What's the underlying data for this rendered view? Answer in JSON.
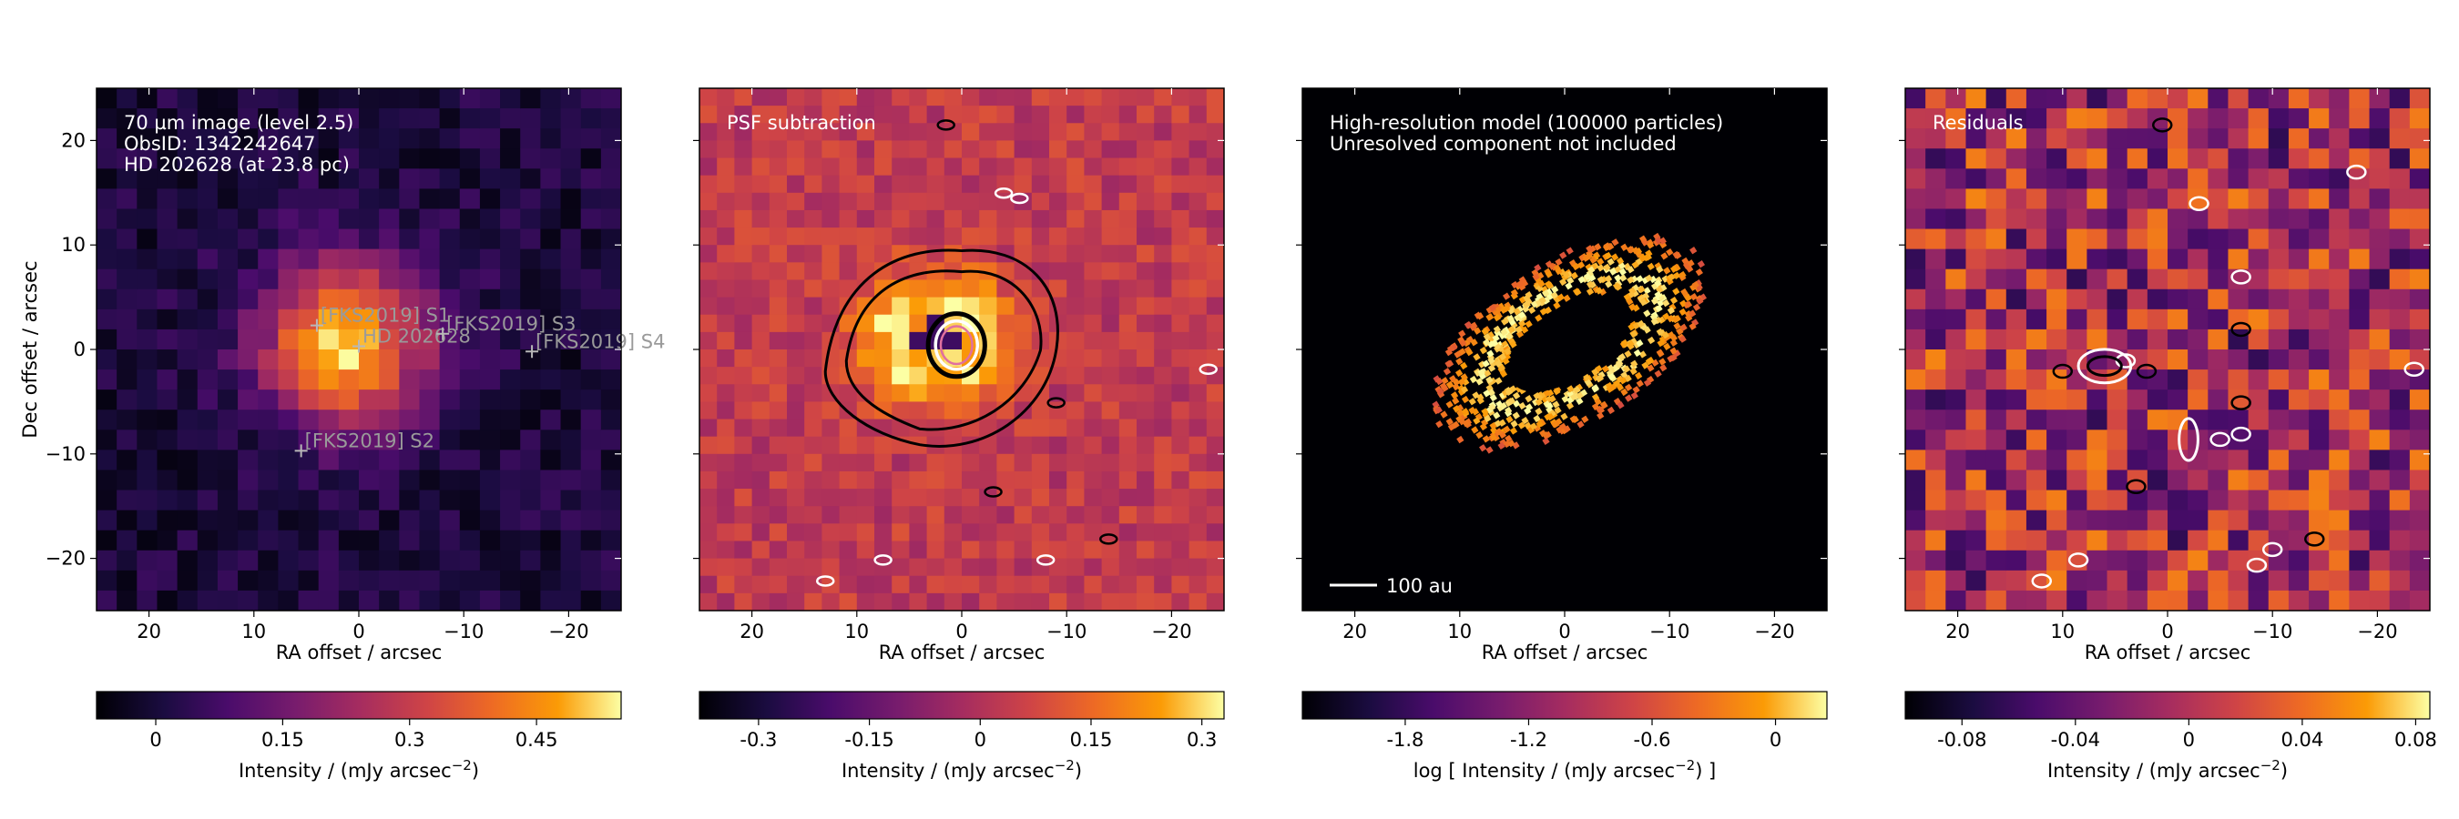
{
  "chart_data": [
    {
      "type": "heatmap",
      "title": "",
      "annotations": [
        "70 µm image (level 2.5)",
        "ObsID: 1342242647",
        "HD 202628 (at 23.8 pc)"
      ],
      "xlabel": "RA offset / arcsec",
      "ylabel": "Dec offset / arcsec",
      "xlim": [
        25,
        -25
      ],
      "ylim": [
        -25,
        25
      ],
      "xticks": [
        20,
        10,
        0,
        -10,
        -20
      ],
      "xticklabels": [
        "20",
        "10",
        "0",
        "−10",
        "−20"
      ],
      "yticks": [
        20,
        10,
        0,
        -10,
        -20
      ],
      "yticklabels": [
        "20",
        "10",
        "0",
        "−10",
        "−20"
      ],
      "grid": false,
      "colormap": "inferno",
      "colorbar": {
        "label_pre": "Intensity / (mJy arcsec",
        "label_sup": "−2",
        "label_post": ")",
        "range": [
          -0.07,
          0.55
        ],
        "ticks": [
          0,
          0.15,
          0.3,
          0.45
        ],
        "ticklabels": [
          "0",
          "0.15",
          "0.3",
          "0.45"
        ]
      },
      "sources": [
        {
          "label": "[FKS2019] S1",
          "x": 4,
          "y": 2.3
        },
        {
          "label": "HD 202628",
          "x": 0,
          "y": 0.3
        },
        {
          "label": "[FKS2019] S3",
          "x": -8,
          "y": 1.5
        },
        {
          "label": "[FKS2019] S4",
          "x": -16.5,
          "y": -0.2
        },
        {
          "label": "[FKS2019] S2",
          "x": 5.5,
          "y": -9.7
        }
      ]
    },
    {
      "type": "heatmap",
      "title": "",
      "annotations": [
        "PSF subtraction"
      ],
      "xlabel": "RA offset / arcsec",
      "xlim": [
        25,
        -25
      ],
      "ylim": [
        -25,
        25
      ],
      "xticks": [
        20,
        10,
        0,
        -10,
        -20
      ],
      "xticklabels": [
        "20",
        "10",
        "0",
        "−10",
        "−20"
      ],
      "grid": false,
      "colormap": "inferno",
      "contours": "black and white contour lines",
      "colorbar": {
        "label_pre": "Intensity / (mJy arcsec",
        "label_sup": "−2",
        "label_post": ")",
        "range": [
          -0.38,
          0.33
        ],
        "ticks": [
          -0.3,
          -0.15,
          0,
          0.15,
          0.3
        ],
        "ticklabels": [
          "-0.3",
          "-0.15",
          "0",
          "0.15",
          "0.3"
        ]
      }
    },
    {
      "type": "heatmap",
      "title": "",
      "annotations": [
        "High-resolution model (100000 particles)",
        "Unresolved component not included"
      ],
      "scalebar": "100 au",
      "xlabel": "RA offset / arcsec",
      "xlim": [
        25,
        -25
      ],
      "ylim": [
        -25,
        25
      ],
      "xticks": [
        20,
        10,
        0,
        -10,
        -20
      ],
      "xticklabels": [
        "20",
        "10",
        "0",
        "−10",
        "−20"
      ],
      "grid": false,
      "colormap": "inferno",
      "colorbar": {
        "label_pre": "log [ Intensity / (mJy arcsec",
        "label_sup": "−2",
        "label_post": ") ]",
        "range": [
          -2.3,
          0.25
        ],
        "ticks": [
          -1.8,
          -1.2,
          -0.6,
          0
        ],
        "ticklabels": [
          "-1.8",
          "-1.2",
          "-0.6",
          "0"
        ]
      }
    },
    {
      "type": "heatmap",
      "title": "",
      "annotations": [
        "Residuals"
      ],
      "xlabel": "RA offset / arcsec",
      "xlim": [
        25,
        -25
      ],
      "ylim": [
        -25,
        25
      ],
      "xticks": [
        20,
        10,
        0,
        -10,
        -20
      ],
      "xticklabels": [
        "20",
        "10",
        "0",
        "−10",
        "−20"
      ],
      "grid": false,
      "colormap": "inferno",
      "contours": "black and white contour lines",
      "colorbar": {
        "label_pre": "Intensity / (mJy arcsec",
        "label_sup": "−2",
        "label_post": ")",
        "range": [
          -0.1,
          0.085
        ],
        "ticks": [
          -0.08,
          -0.04,
          0,
          0.04,
          0.08
        ],
        "ticklabels": [
          "-0.08",
          "-0.04",
          "0",
          "0.04",
          "0.08"
        ]
      }
    }
  ]
}
